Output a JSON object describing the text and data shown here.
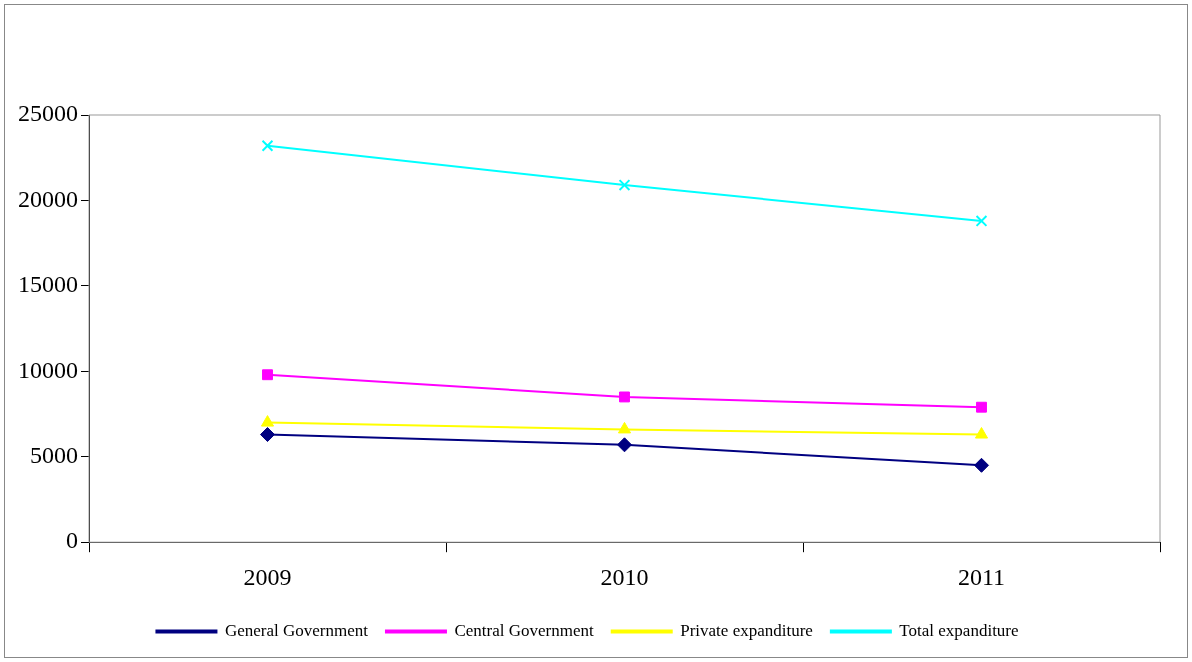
{
  "chart_data": {
    "type": "line",
    "categories": [
      "2009",
      "2010",
      "2011"
    ],
    "ylim": [
      0,
      25000
    ],
    "yticks": [
      0,
      5000,
      10000,
      15000,
      20000,
      25000
    ],
    "grid": false,
    "legend": "bottom",
    "series": [
      {
        "name": "General Government",
        "color": "#000080",
        "marker": "diamond",
        "values": [
          6300,
          5700,
          4500
        ]
      },
      {
        "name": "Central Government",
        "color": "#ff00ff",
        "marker": "square",
        "values": [
          9800,
          8500,
          7900
        ]
      },
      {
        "name": "Private expanditure",
        "color": "#ffff00",
        "marker": "triangle",
        "values": [
          7000,
          6600,
          6300
        ]
      },
      {
        "name": "Total expanditure",
        "color": "#00ffff",
        "marker": "cross",
        "values": [
          23200,
          20900,
          18800
        ]
      }
    ]
  }
}
